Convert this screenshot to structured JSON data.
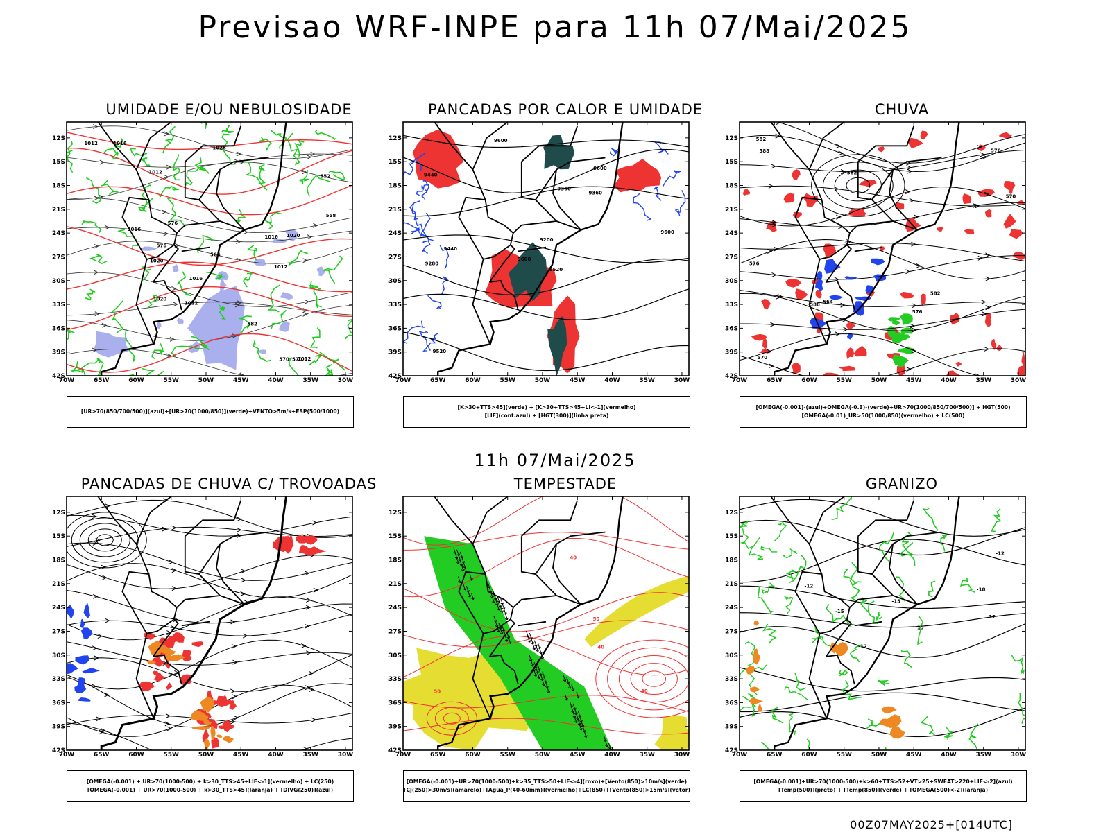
{
  "title": "Previsao WRF-INPE  para 11h 07/Mai/2025",
  "mid_title": "11h 07/Mai/2025",
  "footer": "00Z07MAY2025+[014UTC]",
  "axes": {
    "lat_ticks": [
      "12S",
      "15S",
      "18S",
      "21S",
      "24S",
      "27S",
      "30S",
      "33S",
      "36S",
      "39S",
      "42S"
    ],
    "lon_ticks": [
      "70W",
      "65W",
      "60W",
      "55W",
      "50W",
      "45W",
      "40W",
      "35W",
      "30W"
    ]
  },
  "colors": {
    "green": "#22cc22",
    "red": "#ee3333",
    "blue": "#2244ee",
    "lavender": "#aab0ee",
    "darkteal": "#1f4b4b",
    "yellow": "#e6dd33",
    "orange": "#ee8822",
    "black": "#000000"
  },
  "panels": [
    {
      "title": "UMIDADE E/OU NEBULOSIDADE",
      "legend": [
        "[UR>70(850/700/500)](azul)+[UR>70(1000/850)](verde)+VENTO>5m/s+ESP(500/1000)"
      ],
      "contour_labels": [
        "1016",
        "1016",
        "1016",
        "1012",
        "1012",
        "1012",
        "1012",
        "1020",
        "1020",
        "1016",
        "1020",
        "1028",
        "1012",
        "570",
        "576",
        "582",
        "564",
        "558",
        "552",
        "576",
        "570"
      ]
    },
    {
      "title": "PANCADAS POR CALOR E UMIDADE",
      "legend": [
        "[K>30+TTS>45](verde) + [K>30+TTS>45+LI<-1](vermelho)",
        "[LIF](cont.azul) + [HGT(300)](linha preta)"
      ],
      "contour_labels": [
        "9600",
        "9600",
        "9600",
        "9600",
        "9520",
        "9440",
        "9440",
        "9360",
        "9280",
        "9360",
        "9200",
        "9520"
      ]
    },
    {
      "title": "CHUVA",
      "legend": [
        "[OMEGA(-0.001)-(azul)+OMEGA(-0.3)-(verde)+UR>70(1000/850/700/500)] + HGT(500)",
        "[OMEGA(-0.01)_UR>50(1000/850)(vermelho) + LC(500)"
      ],
      "contour_labels": [
        "588",
        "582",
        "576",
        "576",
        "570",
        "576",
        "582",
        "564",
        "570",
        "582",
        "588"
      ]
    },
    {
      "title": "PANCADAS DE CHUVA C/ TROVOADAS",
      "legend": [
        "[OMEGA(-0.001) + UR>70(1000-500) + k>30_TTS>45+LIF<-1](vermelho) + LC(250)",
        "[OMEGA(-0.001) + UR>70(1000-500) + k>30_TTS>45](laranja) + [DIVG(250)](azul)"
      ],
      "contour_labels": []
    },
    {
      "title": "TEMPESTADE",
      "legend": [
        "[OMEGA(-0.001)+UR>70(1000-500)+k>35_TTS>50+LIF<-4](roxo)+[Vento(850)>10m/s](verde)",
        "[CJ(250)>30m/s](amarelo)+[Agua_P(40-60mm)](vermelho)+LC(850)+[Vento(850)>15m/s](vetor)"
      ],
      "contour_labels": [
        "50",
        "40",
        "40",
        "50",
        "40"
      ]
    },
    {
      "title": "GRANIZO",
      "legend": [
        "[OMEGA(-0.001)+UR>70(1000-500)+k>60+TTS>52+VT>25+SWEAT>220+LIF<-2](azul)",
        "[Temp(500)](preto) + [Temp(850)](verde) + [OMEGA(500)<-2](laranja)"
      ],
      "contour_labels": [
        "-12",
        "-12",
        "-12",
        "-15",
        "-15",
        "15",
        "12",
        "-18"
      ]
    }
  ]
}
